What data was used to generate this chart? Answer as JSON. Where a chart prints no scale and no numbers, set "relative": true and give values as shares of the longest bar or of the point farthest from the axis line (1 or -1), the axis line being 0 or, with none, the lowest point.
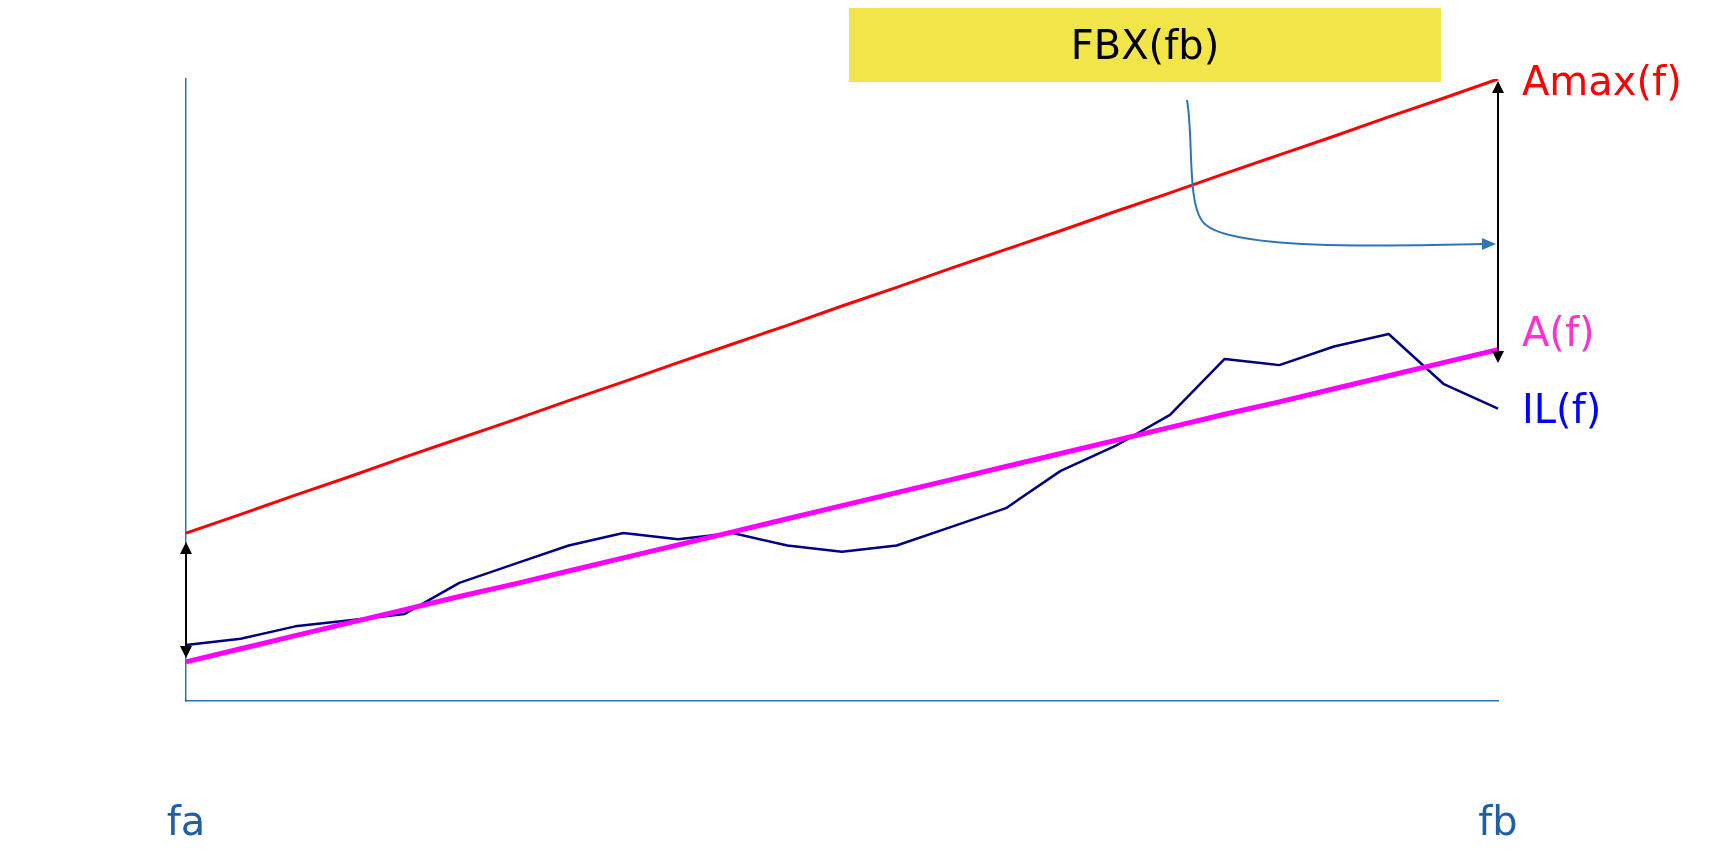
{
  "chart_data": {
    "type": "line",
    "relative": true,
    "tick_labels": "x",
    "grid": false,
    "legend": false,
    "marker": "none",
    "line_style": "solid",
    "annotations": [
      "FBX(fb)"
    ],
    "categories": [
      "fa",
      null,
      null,
      null,
      null,
      null,
      null,
      null,
      null,
      null,
      null,
      null,
      null,
      null,
      null,
      null,
      null,
      null,
      null,
      null,
      null,
      null,
      null,
      null,
      "fb"
    ],
    "series": [
      {
        "name": "Amax(f)",
        "color": "#ff0000",
        "values": [
          0.27,
          0.3,
          0.331,
          0.361,
          0.392,
          0.422,
          0.452,
          0.483,
          0.513,
          0.544,
          0.574,
          0.604,
          0.635,
          0.665,
          0.696,
          0.726,
          0.756,
          0.787,
          0.817,
          0.848,
          0.878,
          0.908,
          0.939,
          0.969,
          1.0
        ]
      },
      {
        "name": "A(f)",
        "color": "#ff00ff",
        "values": [
          0.063,
          0.084,
          0.105,
          0.126,
          0.147,
          0.168,
          0.188,
          0.209,
          0.23,
          0.251,
          0.272,
          0.293,
          0.314,
          0.335,
          0.356,
          0.377,
          0.398,
          0.419,
          0.44,
          0.461,
          0.481,
          0.502,
          0.523,
          0.544,
          0.565
        ]
      },
      {
        "name": "IL(f)",
        "color": "#000080",
        "values": [
          0.09,
          0.1,
          0.12,
          0.13,
          0.14,
          0.19,
          0.22,
          0.25,
          0.27,
          0.26,
          0.27,
          0.25,
          0.24,
          0.25,
          0.28,
          0.31,
          0.37,
          0.41,
          0.46,
          0.55,
          0.54,
          0.57,
          0.59,
          0.51,
          0.47
        ]
      }
    ]
  }
}
